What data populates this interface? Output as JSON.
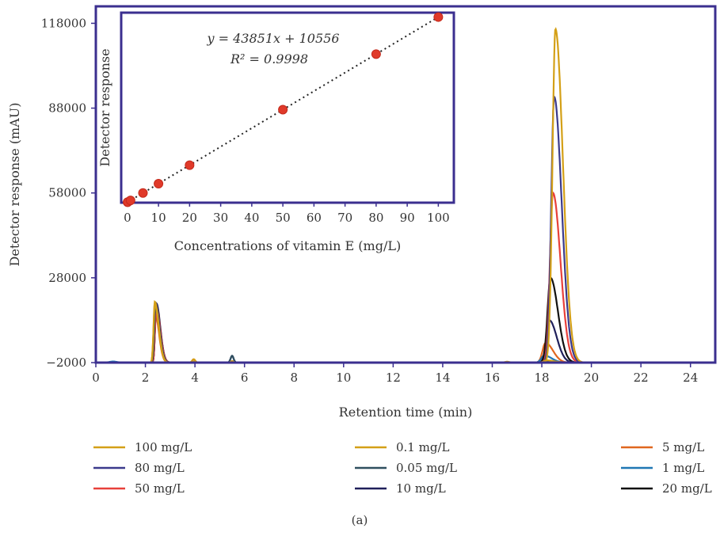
{
  "figure_label": "(a)",
  "chart_data": [
    {
      "type": "line",
      "id": "chromatogram",
      "xlabel": "Retention time (min)",
      "ylabel": "Detector response (mAU)",
      "xlim": [
        0,
        25
      ],
      "ylim": [
        -2000,
        124000
      ],
      "xticks": [
        0,
        2,
        4,
        6,
        8,
        10,
        12,
        14,
        16,
        18,
        20,
        22,
        24
      ],
      "yticks": [
        -2000,
        28000,
        58000,
        88000,
        118000
      ],
      "ytick_labels": [
        "−2000",
        "28000",
        "58000",
        "88000",
        "118000"
      ],
      "baseline": -2000,
      "series": [
        {
          "name": "100 mg/L",
          "color": "#d4a017",
          "peak_height": 116000,
          "peak_rt": 18.55,
          "early_peak": 18500
        },
        {
          "name": "80 mg/L",
          "color": "#3b3a8c",
          "peak_height": 92000,
          "peak_rt": 18.5,
          "early_peak": 19000
        },
        {
          "name": "50 mg/L",
          "color": "#e8403a",
          "peak_height": 58000,
          "peak_rt": 18.45,
          "early_peak": 17500
        },
        {
          "name": "0.1 mg/L",
          "color": "#d4a017",
          "peak_height": -1200,
          "peak_rt": 18.2,
          "early_peak": 19500
        },
        {
          "name": "0.05 mg/L",
          "color": "#2f4f5f",
          "peak_height": -1300,
          "peak_rt": 18.2,
          "early_peak": 18000
        },
        {
          "name": "10 mg/L",
          "color": "#1f1f5a",
          "peak_height": 13000,
          "peak_rt": 18.3,
          "early_peak": 19000
        },
        {
          "name": "5 mg/L",
          "color": "#e0671f",
          "peak_height": 5000,
          "peak_rt": 18.15,
          "early_peak": 16000
        },
        {
          "name": "1 mg/L",
          "color": "#1f77b4",
          "peak_height": 500,
          "peak_rt": 18.1,
          "early_peak": 18000
        },
        {
          "name": "20 mg/L",
          "color": "#111111",
          "peak_height": 28000,
          "peak_rt": 18.35,
          "early_peak": 18000
        }
      ]
    },
    {
      "type": "scatter",
      "id": "calibration-inset",
      "xlabel": "Concentrations of vitamin E (mg/L)",
      "ylabel": "Detector response",
      "xlim": [
        -2,
        105
      ],
      "ylim": [
        0,
        4500000
      ],
      "xticks": [
        0,
        10,
        20,
        30,
        40,
        50,
        60,
        70,
        80,
        90,
        100
      ],
      "equation": "y = 43851x + 10556",
      "r_squared": "R² = 0.9998",
      "slope": 43851,
      "intercept": 10556,
      "points": [
        {
          "x": 0.05,
          "y": 12749
        },
        {
          "x": 0.1,
          "y": 14941
        },
        {
          "x": 1,
          "y": 54407
        },
        {
          "x": 5,
          "y": 229811
        },
        {
          "x": 10,
          "y": 449066
        },
        {
          "x": 20,
          "y": 887576
        },
        {
          "x": 50,
          "y": 2203106
        },
        {
          "x": 80,
          "y": 3518636
        },
        {
          "x": 100,
          "y": 4395656
        }
      ],
      "point_color": "#e03a2a"
    }
  ],
  "legend": {
    "columns": [
      [
        "100 mg/L",
        "80 mg/L",
        "50 mg/L"
      ],
      [
        "0.1 mg/L",
        "0.05 mg/L",
        "10 mg/L"
      ],
      [
        "5 mg/L",
        "1 mg/L",
        "20 mg/L"
      ]
    ],
    "colors": {
      "100 mg/L": "#d4a017",
      "80 mg/L": "#3b3a8c",
      "50 mg/L": "#e8403a",
      "0.1 mg/L": "#d4a017",
      "0.05 mg/L": "#2f4f5f",
      "10 mg/L": "#1f1f5a",
      "5 mg/L": "#e0671f",
      "1 mg/L": "#1f77b4",
      "20 mg/L": "#111111"
    }
  }
}
